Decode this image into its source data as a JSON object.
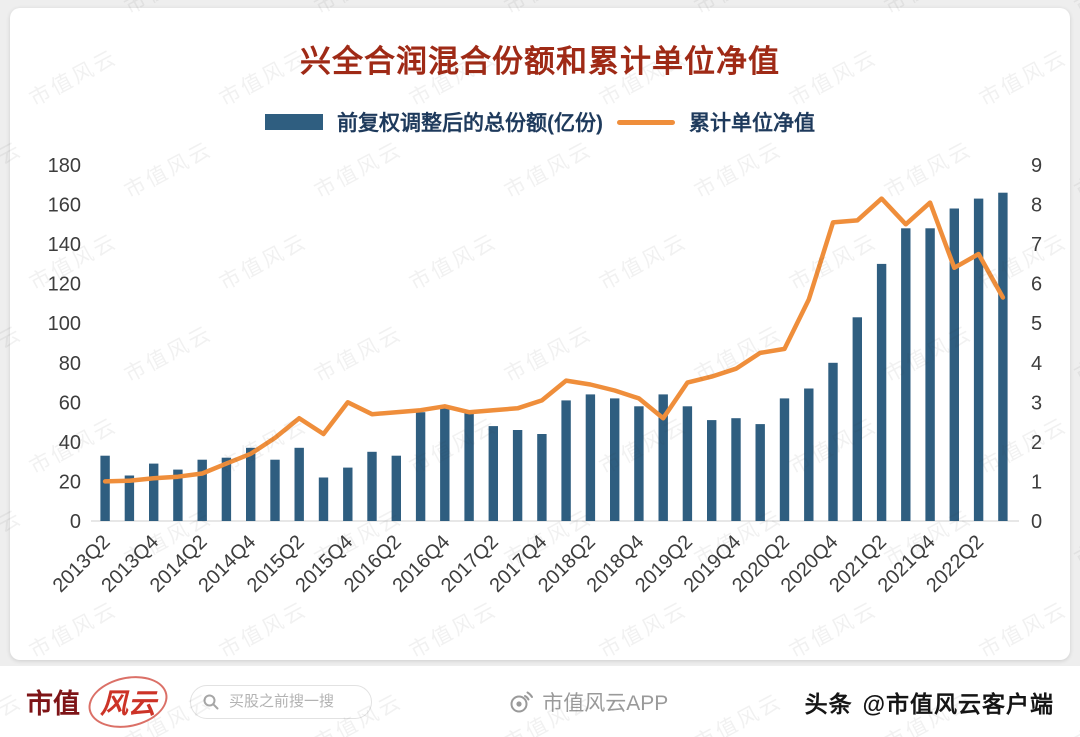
{
  "watermark": {
    "text": "市值风云"
  },
  "chart_data": {
    "type": "bar",
    "title": "兴全合润混合份额和累计单位净值",
    "categories": [
      "2013Q2",
      "2013Q3",
      "2013Q4",
      "2014Q1",
      "2014Q2",
      "2014Q3",
      "2014Q4",
      "2015Q1",
      "2015Q2",
      "2015Q3",
      "2015Q4",
      "2016Q1",
      "2016Q2",
      "2016Q3",
      "2016Q4",
      "2017Q1",
      "2017Q2",
      "2017Q3",
      "2017Q4",
      "2018Q1",
      "2018Q2",
      "2018Q3",
      "2018Q4",
      "2019Q1",
      "2019Q2",
      "2019Q3",
      "2019Q4",
      "2020Q1",
      "2020Q2",
      "2020Q3",
      "2020Q4",
      "2021Q1",
      "2021Q2",
      "2021Q3",
      "2021Q4",
      "2022Q1",
      "2022Q2",
      "2022Q3"
    ],
    "x_tick_labels_visible": [
      "2013Q2",
      "2013Q4",
      "2014Q2",
      "2014Q4",
      "2015Q2",
      "2015Q4",
      "2016Q2",
      "2016Q4",
      "2017Q2",
      "2017Q4",
      "2018Q2",
      "2018Q4",
      "2019Q2",
      "2019Q4",
      "2020Q2",
      "2020Q4",
      "2021Q2",
      "2021Q4",
      "2022Q2"
    ],
    "series": [
      {
        "name": "前复权调整后的总份额(亿份)",
        "type": "bar",
        "axis": "left",
        "color": "#2f5e80",
        "values": [
          33,
          23,
          29,
          26,
          31,
          32,
          37,
          31,
          37,
          22,
          27,
          35,
          33,
          55,
          57,
          55,
          48,
          46,
          44,
          61,
          64,
          62,
          58,
          64,
          58,
          51,
          52,
          49,
          62,
          67,
          80,
          103,
          130,
          148,
          148,
          158,
          163,
          166
        ]
      },
      {
        "name": "累计单位净值",
        "type": "line",
        "axis": "right",
        "color": "#ef8e3b",
        "values": [
          1.0,
          1.02,
          1.08,
          1.12,
          1.2,
          1.45,
          1.7,
          2.1,
          2.6,
          2.2,
          3.0,
          2.7,
          2.75,
          2.8,
          2.9,
          2.75,
          2.8,
          2.85,
          3.05,
          3.55,
          3.45,
          3.3,
          3.1,
          2.6,
          3.5,
          3.65,
          3.85,
          4.25,
          4.35,
          5.6,
          7.55,
          7.6,
          8.15,
          7.5,
          8.05,
          6.4,
          6.75,
          5.65
        ]
      }
    ],
    "left_axis": {
      "min": 0,
      "max": 180,
      "step": 20
    },
    "right_axis": {
      "min": 0,
      "max": 9,
      "step": 1
    },
    "grid": false,
    "legend_position": "top",
    "title_color": "#9f2a16",
    "legend_text_color": "#1e3a5c"
  },
  "footer": {
    "brand_left": "市值",
    "brand_script": "风云",
    "search_placeholder": "买股之前搜一搜",
    "center_label": "市值风云APP",
    "right_prefix": "头条",
    "right_handle": "@市值风云客户端"
  }
}
